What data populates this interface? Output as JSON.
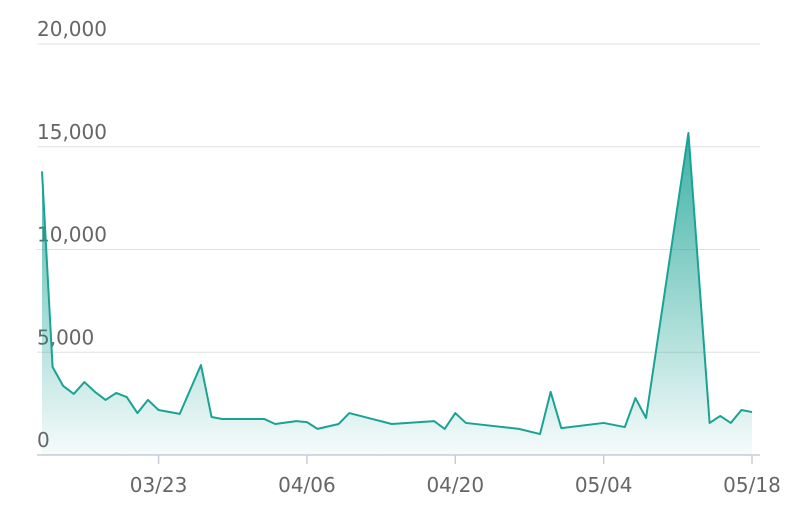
{
  "chart_data": {
    "type": "area",
    "x": [
      "03/12",
      "03/13",
      "03/14",
      "03/15",
      "03/16",
      "03/17",
      "03/18",
      "03/19",
      "03/20",
      "03/21",
      "03/22",
      "03/23",
      "03/25",
      "03/27",
      "03/28",
      "03/29",
      "04/02",
      "04/03",
      "04/05",
      "04/06",
      "04/07",
      "04/09",
      "04/10",
      "04/14",
      "04/18",
      "04/19",
      "04/20",
      "04/21",
      "04/26",
      "04/28",
      "04/29",
      "04/30",
      "05/04",
      "05/06",
      "05/07",
      "05/08",
      "05/12",
      "05/14",
      "05/15",
      "05/16",
      "05/17",
      "05/18"
    ],
    "values": [
      13800,
      4280,
      3360,
      2970,
      3550,
      3070,
      2680,
      3020,
      2820,
      2040,
      2680,
      2190,
      2000,
      4380,
      1850,
      1750,
      1750,
      1510,
      1650,
      1600,
      1270,
      1510,
      2040,
      1510,
      1650,
      1270,
      2040,
      1560,
      1270,
      1020,
      3070,
      1310,
      1560,
      1360,
      2770,
      1800,
      15670,
      1560,
      1900,
      1560,
      2190,
      2090
    ],
    "color": "#1aa394",
    "xlim": [
      "03/12",
      "05/18"
    ],
    "xticks": [
      "03/23",
      "04/06",
      "04/20",
      "05/04",
      "05/18"
    ],
    "ylim": [
      0,
      20000
    ],
    "yticks": [
      0,
      {
        "value": 5000,
        "label": "5,000"
      },
      {
        "value": 10000,
        "label": "10,000"
      },
      {
        "value": 15000,
        "label": "15,000"
      },
      {
        "value": 20000,
        "label": "20,000"
      }
    ],
    "grid": true
  }
}
